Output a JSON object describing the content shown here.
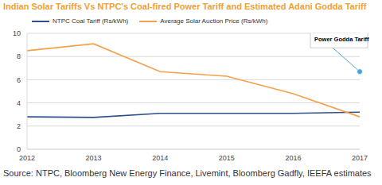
{
  "chart_data": {
    "type": "line",
    "title": "Indian Solar Tariffs Vs NTPC's Coal-fired Power Tariff and Estimated Adani Godda Tariff",
    "categories": [
      "2012",
      "2013",
      "2014",
      "2015",
      "2016",
      "2017"
    ],
    "series": [
      {
        "name": "NTPC Coal Tariff (Rs/kWh)",
        "color": "#2e4f8a",
        "values": [
          2.8,
          2.75,
          3.1,
          3.1,
          3.1,
          3.2
        ]
      },
      {
        "name": "Average Solar Auction Price (Rs/kWh)",
        "color": "#f5a04a",
        "values": [
          8.5,
          9.1,
          6.7,
          6.3,
          4.8,
          2.8
        ]
      }
    ],
    "points": [
      {
        "label": "Estimated Adani Power Godda Tariff",
        "category": "2017",
        "value": 6.7,
        "color": "#4aa3df"
      }
    ],
    "ylim": [
      0,
      10
    ],
    "yticks": [
      0,
      2,
      4,
      6,
      8,
      10
    ],
    "grid": true,
    "legend": "top",
    "source": "Source: NTPC, Bloomberg New Energy Finance, Livemint, Bloomberg Gadfly, IEEFA estimates"
  }
}
